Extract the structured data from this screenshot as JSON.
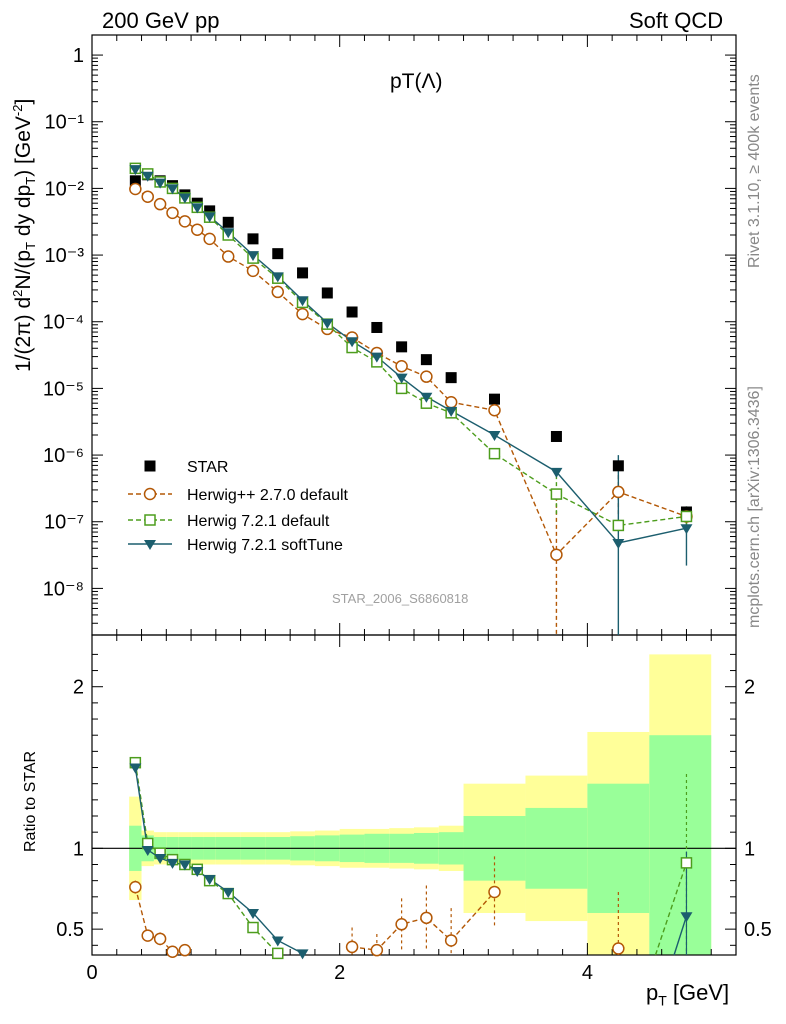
{
  "header": {
    "left": "200 GeV pp",
    "right": "Soft QCD"
  },
  "side_labels": {
    "rivet": "Rivet 3.1.10, ≥ 400k events",
    "mcplots": "mcplots.cern.ch [arXiv:1306.3436]"
  },
  "watermark": "STAR_2006_S6860818",
  "colors": {
    "star": "#000000",
    "herwigpp": "#b35806",
    "herwig721": "#4d9d1d",
    "softtune": "#1c5e6e",
    "band_outer": "#ffff99",
    "band_inner": "#99ff99"
  },
  "chart_data": [
    {
      "type": "scatter",
      "title": "pT(Λ)",
      "ylabel": "1/(2π) d²N/(p_T dy dp_T) [GeV⁻²]",
      "yscale": "log",
      "ylim": [
        2e-09,
        2
      ],
      "xlim": [
        0,
        5.2
      ],
      "ytick_labels": [
        "1",
        "10⁻¹",
        "10⁻²",
        "10⁻³",
        "10⁻⁴",
        "10⁻⁵",
        "10⁻⁶",
        "10⁻⁷",
        "10⁻⁸"
      ],
      "legend_position": "lower-left",
      "series": [
        {
          "name": "STAR",
          "marker": "filled-square",
          "x": [
            0.35,
            0.45,
            0.55,
            0.65,
            0.75,
            0.85,
            0.95,
            1.1,
            1.3,
            1.5,
            1.7,
            1.9,
            2.1,
            2.3,
            2.5,
            2.7,
            2.9,
            3.25,
            3.75,
            4.25,
            4.8
          ],
          "y": [
            0.013,
            0.016,
            0.013,
            0.011,
            0.008,
            0.006,
            0.0046,
            0.0031,
            0.00175,
            0.00105,
            0.00054,
            0.00027,
            0.00014,
            8.2e-05,
            4.2e-05,
            2.7e-05,
            1.45e-05,
            6.9e-06,
            1.9e-06,
            6.9e-07,
            1.4e-07
          ]
        },
        {
          "name": "Herwig++ 2.7.0 default",
          "marker": "open-circle",
          "line": "dashed",
          "x": [
            0.35,
            0.45,
            0.55,
            0.65,
            0.75,
            0.85,
            0.95,
            1.1,
            1.3,
            1.5,
            1.7,
            1.9,
            2.1,
            2.3,
            2.5,
            2.7,
            2.9,
            3.25,
            3.75,
            4.25,
            4.8
          ],
          "y": [
            0.0098,
            0.0075,
            0.0058,
            0.0043,
            0.0032,
            0.0024,
            0.00175,
            0.00095,
            0.00058,
            0.00028,
            0.00013,
            7.8e-05,
            5.8e-05,
            3.4e-05,
            2.15e-05,
            1.5e-05,
            6.2e-06,
            4.7e-06,
            3.2e-08,
            2.8e-07,
            1.2e-07
          ]
        },
        {
          "name": "Herwig 7.2.1 default",
          "marker": "open-square",
          "line": "dashed",
          "x": [
            0.35,
            0.45,
            0.55,
            0.65,
            0.75,
            0.85,
            0.95,
            1.1,
            1.3,
            1.5,
            1.7,
            1.9,
            2.1,
            2.3,
            2.5,
            2.7,
            2.9,
            3.25,
            3.75,
            4.25,
            4.8
          ],
          "y": [
            0.02,
            0.0165,
            0.0125,
            0.01,
            0.0072,
            0.0052,
            0.0037,
            0.002,
            0.0009,
            0.00045,
            0.000195,
            9.2e-05,
            4.1e-05,
            2.5e-05,
            1e-05,
            6e-06,
            4.3e-06,
            1.05e-06,
            2.6e-07,
            8.8e-08,
            1.2e-07
          ]
        },
        {
          "name": "Herwig 7.2.1 softTune",
          "marker": "filled-down-triangle",
          "line": "solid",
          "x": [
            0.35,
            0.45,
            0.55,
            0.65,
            0.75,
            0.85,
            0.95,
            1.1,
            1.3,
            1.5,
            1.7,
            1.9,
            2.1,
            2.3,
            2.5,
            2.7,
            2.9,
            3.25,
            3.75,
            4.25,
            4.8
          ],
          "y": [
            0.0195,
            0.0155,
            0.0122,
            0.01,
            0.0073,
            0.0052,
            0.0038,
            0.0022,
            0.001,
            0.00048,
            0.00021,
            9.6e-05,
            5.1e-05,
            3e-05,
            1.45e-05,
            7.5e-06,
            4.6e-06,
            2e-06,
            5.6e-07,
            4.8e-08,
            8e-08
          ]
        }
      ]
    },
    {
      "type": "line",
      "ylabel": "Ratio to STAR",
      "xlabel": "p_T [GeV]",
      "xlim": [
        0,
        5.2
      ],
      "ylim": [
        0.34,
        2.32
      ],
      "x_ticks": [
        0,
        2,
        4
      ],
      "y_ticks": [
        0.5,
        1,
        2
      ],
      "bin_edges": [
        0.3,
        0.4,
        0.5,
        0.6,
        0.7,
        0.8,
        0.9,
        1.0,
        1.2,
        1.4,
        1.6,
        1.8,
        2.0,
        2.2,
        2.4,
        2.6,
        2.8,
        3.0,
        3.5,
        4.0,
        4.5,
        5.0
      ],
      "band_inner": [
        0.14,
        0.08,
        0.07,
        0.07,
        0.07,
        0.07,
        0.07,
        0.07,
        0.07,
        0.07,
        0.075,
        0.08,
        0.085,
        0.09,
        0.09,
        0.095,
        0.1,
        0.2,
        0.25,
        0.4,
        0.7
      ],
      "band_outer": [
        0.32,
        0.11,
        0.1,
        0.1,
        0.1,
        0.1,
        0.1,
        0.1,
        0.1,
        0.1,
        0.105,
        0.11,
        0.12,
        0.12,
        0.125,
        0.13,
        0.14,
        0.4,
        0.45,
        0.72,
        1.2
      ],
      "series": [
        {
          "name": "Herwig++ 2.7.0 default",
          "x": [
            0.35,
            0.45,
            0.55,
            0.65,
            0.75,
            2.1,
            2.3,
            2.5,
            2.7,
            2.9,
            3.25,
            4.25
          ],
          "y": [
            0.76,
            0.46,
            0.44,
            0.36,
            0.37,
            0.39,
            0.37,
            0.53,
            0.57,
            0.43,
            0.73,
            0.38
          ],
          "segments": [
            [
              0,
              4
            ],
            [
              5,
              10
            ]
          ],
          "err": [
            0.04,
            0.03,
            0.04,
            0.03,
            0.03,
            0.12,
            0.1,
            0.16,
            0.2,
            0.2,
            0.22,
            0.35
          ]
        },
        {
          "name": "Herwig 7.2.1 default",
          "x": [
            0.35,
            0.45,
            0.55,
            0.65,
            0.75,
            0.85,
            0.95,
            1.1,
            1.3,
            1.5,
            4.55,
            4.8
          ],
          "y": [
            1.53,
            1.03,
            0.97,
            0.93,
            0.9,
            0.87,
            0.8,
            0.72,
            0.51,
            0.35,
            0.34,
            0.91
          ],
          "segments": [
            [
              0,
              9
            ],
            [
              10,
              11
            ]
          ],
          "err": [
            0.02,
            0.02,
            0.01,
            0.01,
            0.01,
            0.01,
            0.01,
            0.01,
            0.02,
            0.02,
            0,
            0.55
          ]
        },
        {
          "name": "Herwig 7.2.1 softTune",
          "x": [
            0.35,
            0.45,
            0.55,
            0.65,
            0.75,
            0.85,
            0.95,
            1.1,
            1.3,
            1.5,
            1.7,
            4.7,
            4.8
          ],
          "y": [
            1.5,
            0.99,
            0.94,
            0.91,
            0.9,
            0.86,
            0.81,
            0.73,
            0.6,
            0.43,
            0.35,
            0.34,
            0.58
          ],
          "segments": [
            [
              0,
              10
            ],
            [
              11,
              12
            ]
          ],
          "err": [
            0.02,
            0.02,
            0.01,
            0.01,
            0.01,
            0.01,
            0.01,
            0.01,
            0.02,
            0.02,
            0.02,
            0,
            0.4
          ]
        }
      ]
    }
  ]
}
